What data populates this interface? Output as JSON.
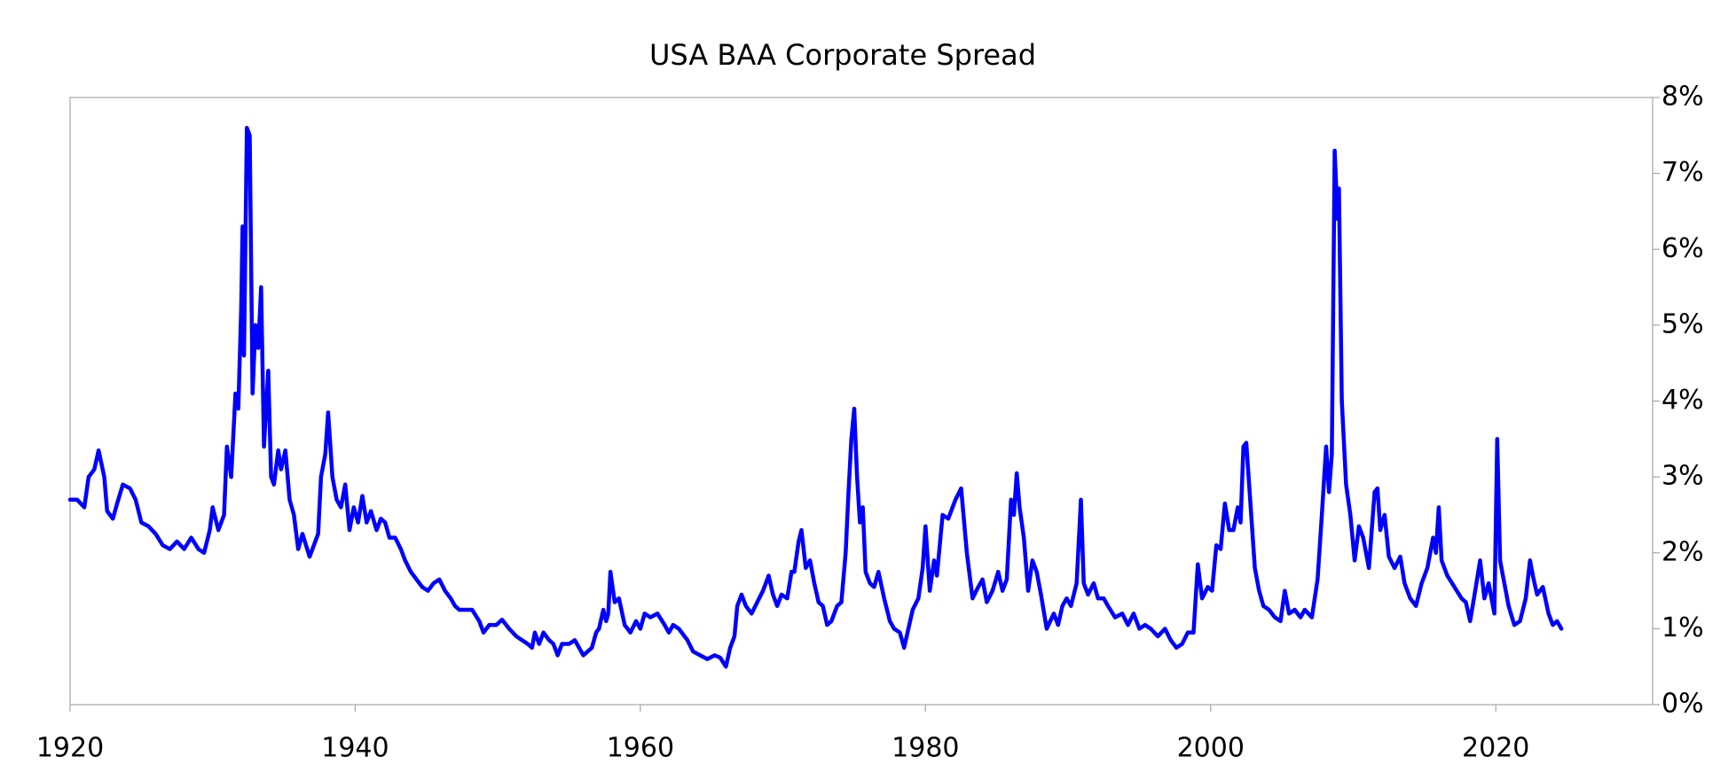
{
  "chart_data": {
    "type": "line",
    "title": "USA BAA Corporate Spread",
    "color": "#0000ff",
    "x": [
      1920,
      1920.5,
      1921,
      1921.3,
      1921.7,
      1922,
      1922.4,
      1922.6,
      1923,
      1923.3,
      1923.7,
      1924.2,
      1924.6,
      1925,
      1925.5,
      1926,
      1926.5,
      1927,
      1927.5,
      1928,
      1928.5,
      1929,
      1929.4,
      1929.8,
      1930,
      1930.4,
      1930.8,
      1931,
      1931.3,
      1931.6,
      1931.8,
      1932,
      1932.1,
      1932.2,
      1932.4,
      1932.6,
      1932.8,
      1933,
      1933.2,
      1933.4,
      1933.6,
      1933.9,
      1934.1,
      1934.3,
      1934.6,
      1934.8,
      1935.1,
      1935.4,
      1935.7,
      1936,
      1936.3,
      1936.8,
      1937.1,
      1937.4,
      1937.6,
      1937.9,
      1938.1,
      1938.4,
      1938.7,
      1939,
      1939.3,
      1939.6,
      1939.9,
      1940.2,
      1940.5,
      1940.8,
      1941.1,
      1941.5,
      1941.8,
      1942.1,
      1942.4,
      1942.8,
      1943.2,
      1943.5,
      1943.9,
      1944.3,
      1944.7,
      1945.1,
      1945.5,
      1945.9,
      1946.3,
      1946.7,
      1947,
      1947.3,
      1947.7,
      1948.2,
      1948.7,
      1949,
      1949.4,
      1949.9,
      1950.3,
      1950.8,
      1951.3,
      1951.7,
      1952.1,
      1952.4,
      1952.6,
      1952.9,
      1953.2,
      1953.6,
      1953.9,
      1954.2,
      1954.5,
      1955,
      1955.4,
      1955.7,
      1956,
      1956.3,
      1956.6,
      1956.9,
      1957.1,
      1957.4,
      1957.6,
      1957.75,
      1957.9,
      1958.2,
      1958.5,
      1958.9,
      1959.3,
      1959.7,
      1960,
      1960.3,
      1960.7,
      1961.2,
      1961.7,
      1962,
      1962.3,
      1962.7,
      1963.3,
      1963.7,
      1964.2,
      1964.7,
      1965.2,
      1965.6,
      1966,
      1966.3,
      1966.6,
      1966.8,
      1967.1,
      1967.4,
      1967.8,
      1968.2,
      1968.6,
      1969,
      1969.3,
      1969.6,
      1969.9,
      1970.3,
      1970.6,
      1970.8,
      1971.1,
      1971.3,
      1971.6,
      1971.9,
      1972.2,
      1972.5,
      1972.8,
      1973.1,
      1973.4,
      1973.8,
      1974.1,
      1974.4,
      1974.6,
      1974.8,
      1975,
      1975.2,
      1975.4,
      1975.6,
      1975.8,
      1976.1,
      1976.4,
      1976.7,
      1977.1,
      1977.5,
      1977.8,
      1978.2,
      1978.5,
      1978.8,
      1979.1,
      1979.5,
      1979.8,
      1980,
      1980.3,
      1980.6,
      1980.8,
      1981.2,
      1981.6,
      1982.1,
      1982.5,
      1982.9,
      1983.3,
      1983.7,
      1984,
      1984.3,
      1984.7,
      1985.1,
      1985.4,
      1985.7,
      1986,
      1986.2,
      1986.4,
      1986.6,
      1986.9,
      1987.2,
      1987.5,
      1987.8,
      1988.1,
      1988.5,
      1989,
      1989.3,
      1989.6,
      1989.9,
      1990.2,
      1990.6,
      1990.9,
      1991.1,
      1991.4,
      1991.8,
      1992.1,
      1992.5,
      1992.8,
      1993.3,
      1993.8,
      1994.2,
      1994.6,
      1995,
      1995.4,
      1995.8,
      1996.3,
      1996.8,
      1997.2,
      1997.6,
      1998,
      1998.4,
      1998.8,
      1999.1,
      1999.4,
      1999.8,
      2000.1,
      2000.4,
      2000.7,
      2001,
      2001.3,
      2001.6,
      2001.9,
      2002.1,
      2002.3,
      2002.5,
      2002.7,
      2003.1,
      2003.4,
      2003.7,
      2004.1,
      2004.5,
      2004.9,
      2005.2,
      2005.5,
      2005.9,
      2006.3,
      2006.6,
      2007.1,
      2007.5,
      2007.8,
      2008.1,
      2008.3,
      2008.5,
      2008.7,
      2008.9,
      2009,
      2009.2,
      2009.5,
      2009.8,
      2010.1,
      2010.4,
      2010.7,
      2011.1,
      2011.5,
      2011.7,
      2011.9,
      2012.2,
      2012.5,
      2012.9,
      2013.3,
      2013.6,
      2014,
      2014.4,
      2014.8,
      2015.2,
      2015.6,
      2015.8,
      2016,
      2016.2,
      2016.6,
      2017.1,
      2017.6,
      2017.9,
      2018.2,
      2018.6,
      2018.9,
      2019.2,
      2019.5,
      2019.8,
      2019.9,
      2020.1,
      2020.3,
      2020.6,
      2020.9,
      2021.3,
      2021.7,
      2022.1,
      2022.4,
      2022.6,
      2022.9,
      2023.3,
      2023.7,
      2024,
      2024.3,
      2024.6
    ],
    "values": [
      2.7,
      2.7,
      2.6,
      3.0,
      3.1,
      3.35,
      3.0,
      2.55,
      2.45,
      2.65,
      2.9,
      2.85,
      2.7,
      2.4,
      2.35,
      2.25,
      2.1,
      2.05,
      2.15,
      2.05,
      2.2,
      2.05,
      2.0,
      2.3,
      2.6,
      2.3,
      2.5,
      3.4,
      3.0,
      4.1,
      3.9,
      5.2,
      6.3,
      4.6,
      7.6,
      7.5,
      4.1,
      5.0,
      4.7,
      5.5,
      3.4,
      4.4,
      3.0,
      2.9,
      3.35,
      3.1,
      3.35,
      2.7,
      2.5,
      2.05,
      2.25,
      1.95,
      2.1,
      2.25,
      3.0,
      3.3,
      3.85,
      3.0,
      2.7,
      2.6,
      2.9,
      2.3,
      2.6,
      2.4,
      2.75,
      2.4,
      2.55,
      2.3,
      2.45,
      2.4,
      2.2,
      2.2,
      2.05,
      1.9,
      1.75,
      1.65,
      1.55,
      1.5,
      1.6,
      1.65,
      1.5,
      1.4,
      1.3,
      1.25,
      1.25,
      1.25,
      1.1,
      0.95,
      1.05,
      1.05,
      1.12,
      1.0,
      0.9,
      0.85,
      0.8,
      0.75,
      0.95,
      0.8,
      0.95,
      0.85,
      0.8,
      0.65,
      0.8,
      0.8,
      0.85,
      0.75,
      0.65,
      0.7,
      0.75,
      0.95,
      1.0,
      1.25,
      1.1,
      1.2,
      1.75,
      1.35,
      1.4,
      1.05,
      0.95,
      1.1,
      1.0,
      1.2,
      1.15,
      1.2,
      1.05,
      0.95,
      1.05,
      1.0,
      0.85,
      0.7,
      0.65,
      0.6,
      0.65,
      0.62,
      0.5,
      0.75,
      0.9,
      1.3,
      1.45,
      1.3,
      1.2,
      1.35,
      1.5,
      1.7,
      1.45,
      1.3,
      1.45,
      1.4,
      1.75,
      1.75,
      2.15,
      2.3,
      1.8,
      1.9,
      1.6,
      1.35,
      1.3,
      1.05,
      1.1,
      1.3,
      1.35,
      2.0,
      2.8,
      3.5,
      3.9,
      3.0,
      2.4,
      2.6,
      1.75,
      1.6,
      1.55,
      1.75,
      1.4,
      1.1,
      1.0,
      0.95,
      0.75,
      1.0,
      1.25,
      1.4,
      1.8,
      2.35,
      1.5,
      1.9,
      1.7,
      2.5,
      2.45,
      2.7,
      2.85,
      2.0,
      1.4,
      1.55,
      1.65,
      1.35,
      1.5,
      1.75,
      1.5,
      1.65,
      2.7,
      2.5,
      3.05,
      2.6,
      2.2,
      1.5,
      1.9,
      1.75,
      1.45,
      1.0,
      1.2,
      1.05,
      1.3,
      1.4,
      1.3,
      1.6,
      2.7,
      1.6,
      1.45,
      1.6,
      1.4,
      1.4,
      1.3,
      1.15,
      1.2,
      1.05,
      1.2,
      1.0,
      1.05,
      1.0,
      0.9,
      1.0,
      0.85,
      0.75,
      0.8,
      0.95,
      0.95,
      1.85,
      1.4,
      1.55,
      1.5,
      2.1,
      2.05,
      2.65,
      2.3,
      2.3,
      2.6,
      2.4,
      3.4,
      3.45,
      2.9,
      1.8,
      1.5,
      1.3,
      1.25,
      1.15,
      1.1,
      1.5,
      1.2,
      1.25,
      1.15,
      1.25,
      1.15,
      1.65,
      2.5,
      3.4,
      2.8,
      3.3,
      7.3,
      6.4,
      6.8,
      4.0,
      2.9,
      2.5,
      1.9,
      2.35,
      2.2,
      1.8,
      2.8,
      2.85,
      2.3,
      2.5,
      1.95,
      1.8,
      1.95,
      1.6,
      1.4,
      1.3,
      1.6,
      1.8,
      2.2,
      2.0,
      2.6,
      1.9,
      1.7,
      1.55,
      1.4,
      1.35,
      1.1,
      1.55,
      1.9,
      1.4,
      1.6,
      1.3,
      1.2,
      3.5,
      1.9,
      1.6,
      1.3,
      1.05,
      1.1,
      1.4,
      1.9,
      1.7,
      1.45,
      1.55,
      1.2,
      1.05,
      1.1,
      1.0
    ],
    "xlim": [
      1920,
      2031
    ],
    "xticks": [
      1920,
      1940,
      1960,
      1980,
      2000,
      2020
    ],
    "ylim": [
      0,
      8
    ],
    "yticks": [
      {
        "value": 0,
        "label": "0%"
      },
      {
        "value": 1,
        "label": "1%"
      },
      {
        "value": 2,
        "label": "2%"
      },
      {
        "value": 3,
        "label": "3%"
      },
      {
        "value": 4,
        "label": "4%"
      },
      {
        "value": 5,
        "label": "5%"
      },
      {
        "value": 6,
        "label": "6%"
      },
      {
        "value": 7,
        "label": "7%"
      },
      {
        "value": 8,
        "label": "8%"
      }
    ]
  }
}
